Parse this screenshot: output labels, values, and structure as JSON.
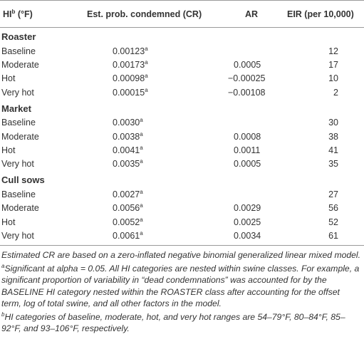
{
  "headers": {
    "hi_main": "HI",
    "hi_sup": "b",
    "hi_unit": " (°F)",
    "cr": "Est. prob. condemned (CR)",
    "ar": "AR",
    "eir": "EIR (per 10,000)"
  },
  "groups": [
    {
      "name": "Roaster",
      "rows": [
        {
          "label": "Baseline",
          "cr": "0.00123",
          "cr_sup": "a",
          "ar": "",
          "eir": "12"
        },
        {
          "label": "Moderate",
          "cr": "0.00173",
          "cr_sup": "a",
          "ar": "0.0005",
          "eir": "17"
        },
        {
          "label": "Hot",
          "cr": "0.00098",
          "cr_sup": "a",
          "ar": "−0.00025",
          "eir": "10"
        },
        {
          "label": "Very hot",
          "cr": "0.00015",
          "cr_sup": "a",
          "ar": "−0.00108",
          "eir": "2"
        }
      ]
    },
    {
      "name": "Market",
      "rows": [
        {
          "label": "Baseline",
          "cr": "0.0030",
          "cr_sup": "a",
          "ar": "",
          "eir": "30"
        },
        {
          "label": "Moderate",
          "cr": "0.0038",
          "cr_sup": "a",
          "ar": "0.0008",
          "eir": "38"
        },
        {
          "label": "Hot",
          "cr": "0.0041",
          "cr_sup": "a",
          "ar": "0.0011",
          "eir": "41"
        },
        {
          "label": "Very hot",
          "cr": "0.0035",
          "cr_sup": "a",
          "ar": "0.0005",
          "eir": "35"
        }
      ]
    },
    {
      "name": "Cull sows",
      "rows": [
        {
          "label": "Baseline",
          "cr": "0.0027",
          "cr_sup": "a",
          "ar": "",
          "eir": "27"
        },
        {
          "label": "Moderate",
          "cr": "0.0056",
          "cr_sup": "a",
          "ar": "0.0029",
          "eir": "56"
        },
        {
          "label": "Hot",
          "cr": "0.0052",
          "cr_sup": "a",
          "ar": "0.0025",
          "eir": "52"
        },
        {
          "label": "Very hot",
          "cr": "0.0061",
          "cr_sup": "a",
          "ar": "0.0034",
          "eir": "61"
        }
      ]
    }
  ],
  "notes": {
    "estimated": "Estimated CR are based on a zero-inflated negative binomial generalized linear mixed model.",
    "a_sup": "a",
    "a_text": "Significant at alpha = 0.05. All HI categories are nested within swine classes. For example, a significant proportion of variability in “dead condemnations” was accounted for by the BASELINE HI category nested within the ROASTER class after accounting for the offset term, log of total swine, and all other factors in the model.",
    "b_sup": "b",
    "b_text": "HI categories of baseline, moderate, hot, and very hot ranges are 54–79°F, 80–84°F, 85–92°F, and 93–106°F, respectively."
  }
}
